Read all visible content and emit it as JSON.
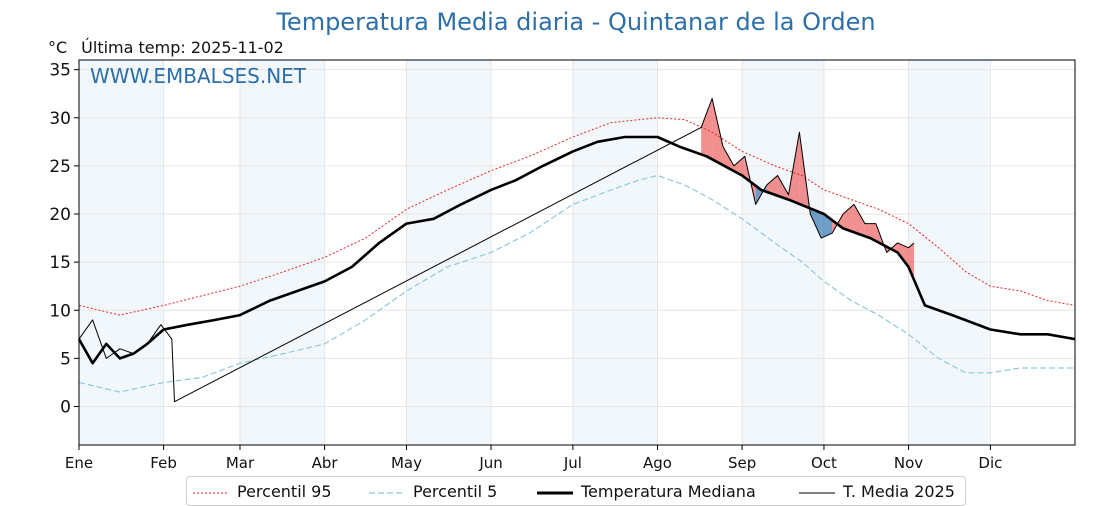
{
  "title": "Temperatura Media diaria - Quintanar de la Orden",
  "unit": "°C",
  "last_temp_label": "Última temp: 2025-11-02",
  "watermark": "WWW.EMBALSES.NET",
  "chart_data": {
    "type": "line",
    "ylim": [
      -4,
      36
    ],
    "yticks": [
      0,
      5,
      10,
      15,
      20,
      25,
      30,
      35
    ],
    "xlim": [
      0,
      365
    ],
    "months": [
      "Ene",
      "Feb",
      "Mar",
      "Abr",
      "May",
      "Jun",
      "Jul",
      "Ago",
      "Sep",
      "Oct",
      "Nov",
      "Dic"
    ],
    "month_starts": [
      0,
      31,
      59,
      90,
      120,
      151,
      181,
      212,
      243,
      273,
      304,
      334
    ],
    "grid": true,
    "legend_placement": "bottom-center",
    "series": [
      {
        "name": "Percentil 95",
        "color": "#e8261c",
        "style": "dotted",
        "x": [
          0,
          15,
          31,
          45,
          59,
          75,
          90,
          105,
          120,
          135,
          151,
          165,
          181,
          195,
          205,
          212,
          222,
          232,
          243,
          255,
          265,
          273,
          283,
          293,
          304,
          315,
          325,
          334,
          345,
          355,
          365
        ],
        "y": [
          10.5,
          9.5,
          10.5,
          11.5,
          12.5,
          14,
          15.5,
          17.5,
          20.5,
          22.5,
          24.5,
          26,
          28,
          29.5,
          29.8,
          30,
          29.8,
          28.5,
          26.5,
          25,
          24,
          22.5,
          21.5,
          20.5,
          19,
          16.5,
          14,
          12.5,
          12,
          11,
          10.5
        ]
      },
      {
        "name": "Percentil 5",
        "color": "#8ec9dd",
        "style": "dashed",
        "x": [
          0,
          15,
          31,
          45,
          59,
          75,
          90,
          105,
          120,
          135,
          151,
          165,
          181,
          195,
          205,
          212,
          222,
          232,
          243,
          255,
          265,
          273,
          283,
          293,
          304,
          315,
          325,
          334,
          345,
          355,
          365
        ],
        "y": [
          2.5,
          1.5,
          2.5,
          3,
          4.5,
          5.5,
          6.5,
          9,
          12,
          14.5,
          16,
          18,
          21,
          22.5,
          23.5,
          24,
          23,
          21.5,
          19.5,
          17,
          15,
          13,
          11,
          9.5,
          7.5,
          5,
          3.5,
          3.5,
          4,
          4,
          4
        ]
      },
      {
        "name": "Temperatura Mediana",
        "color": "#000000",
        "style": "thick",
        "x": [
          0,
          5,
          10,
          15,
          20,
          25,
          31,
          40,
          50,
          59,
          70,
          80,
          90,
          100,
          110,
          120,
          130,
          140,
          151,
          160,
          170,
          181,
          190,
          200,
          212,
          220,
          230,
          243,
          250,
          260,
          273,
          280,
          290,
          300,
          304,
          310,
          320,
          334,
          345,
          355,
          365
        ],
        "y": [
          7,
          4.5,
          6.5,
          5,
          5.5,
          6.5,
          8,
          8.5,
          9,
          9.5,
          11,
          12,
          13,
          14.5,
          17,
          19,
          19.5,
          21,
          22.5,
          23.5,
          25,
          26.5,
          27.5,
          28,
          28,
          27,
          26,
          24,
          22.5,
          21.5,
          20,
          18.5,
          17.5,
          16,
          14.5,
          10.5,
          9.5,
          8,
          7.5,
          7.5,
          7
        ]
      },
      {
        "name": "T. Media 2025",
        "color": "#000000",
        "style": "thin",
        "x": [
          0,
          5,
          10,
          15,
          20,
          25,
          30,
          34,
          35,
          228,
          232,
          236,
          240,
          244,
          248,
          252,
          256,
          260,
          264,
          268,
          272,
          276,
          280,
          284,
          288,
          292,
          296,
          300,
          304,
          306
        ],
        "y": [
          7,
          9,
          5,
          6,
          5.5,
          6.5,
          8.5,
          7,
          0.5,
          29,
          32,
          27,
          25,
          26,
          21,
          23,
          24,
          22,
          28.5,
          20,
          17.5,
          18,
          20,
          21,
          19,
          19,
          16,
          17,
          16.5,
          17
        ]
      }
    ]
  },
  "legend": [
    {
      "label": "Percentil 95",
      "style": "dotted",
      "color": "#e8261c"
    },
    {
      "label": "Percentil 5",
      "style": "dashed",
      "color": "#8ec9dd"
    },
    {
      "label": "Temperatura Mediana",
      "style": "thick",
      "color": "#000000"
    },
    {
      "label": "T. Media 2025",
      "style": "thin",
      "color": "#000000"
    }
  ]
}
